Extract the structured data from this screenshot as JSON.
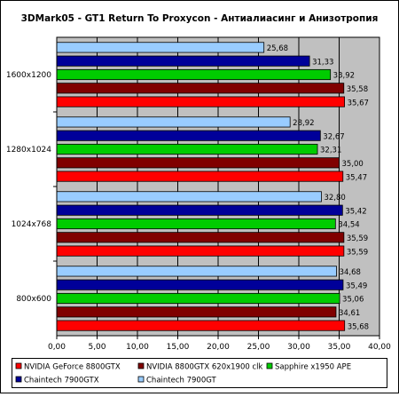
{
  "chart_data": {
    "type": "bar",
    "orientation": "horizontal",
    "title": "3DMark05 - GT1 Return To Proxycon - Антиалиасинг и Анизотропия",
    "xlabel": "",
    "ylabel": "",
    "xlim": [
      0,
      40
    ],
    "x_ticks": [
      "0,00",
      "5,00",
      "10,00",
      "15,00",
      "20,00",
      "25,00",
      "30,00",
      "35,00",
      "40,00"
    ],
    "grid": "vertical",
    "legend_position": "bottom",
    "categories": [
      "1600x1200",
      "1280x1024",
      "1024x768",
      "800x600"
    ],
    "series": [
      {
        "name": "Chaintech 7900GT",
        "color": "#99ccff",
        "values": [
          25.68,
          28.92,
          32.8,
          34.68
        ],
        "labels": [
          "25,68",
          "28,92",
          "32,80",
          "34,68"
        ]
      },
      {
        "name": "Chaintech 7900GTX",
        "color": "#000099",
        "values": [
          31.33,
          32.67,
          35.42,
          35.49
        ],
        "labels": [
          "31,33",
          "32,67",
          "35,42",
          "35,49"
        ]
      },
      {
        "name": "Sapphire x1950 APE",
        "color": "#00cc00",
        "values": [
          33.92,
          32.31,
          34.54,
          35.06
        ],
        "labels": [
          "33,92",
          "32,31",
          "34,54",
          "35,06"
        ]
      },
      {
        "name": "NVIDIA 8800GTX 620x1900 clk",
        "color": "#800000",
        "values": [
          35.58,
          35.0,
          35.59,
          34.61
        ],
        "labels": [
          "35,58",
          "35,00",
          "35,59",
          "34,61"
        ]
      },
      {
        "name": "NVIDIA GeForce 8800GTX",
        "color": "#ff0000",
        "values": [
          35.67,
          35.47,
          35.59,
          35.68
        ],
        "labels": [
          "35,67",
          "35,47",
          "35,59",
          "35,68"
        ]
      }
    ],
    "legend_order": [
      "NVIDIA GeForce 8800GTX",
      "NVIDIA 8800GTX 620x1900 clk",
      "Sapphire x1950 APE",
      "Chaintech 7900GTX",
      "Chaintech 7900GT"
    ],
    "colors": {
      "plot_background": "#c0c0c0",
      "frame": "#000000"
    }
  }
}
